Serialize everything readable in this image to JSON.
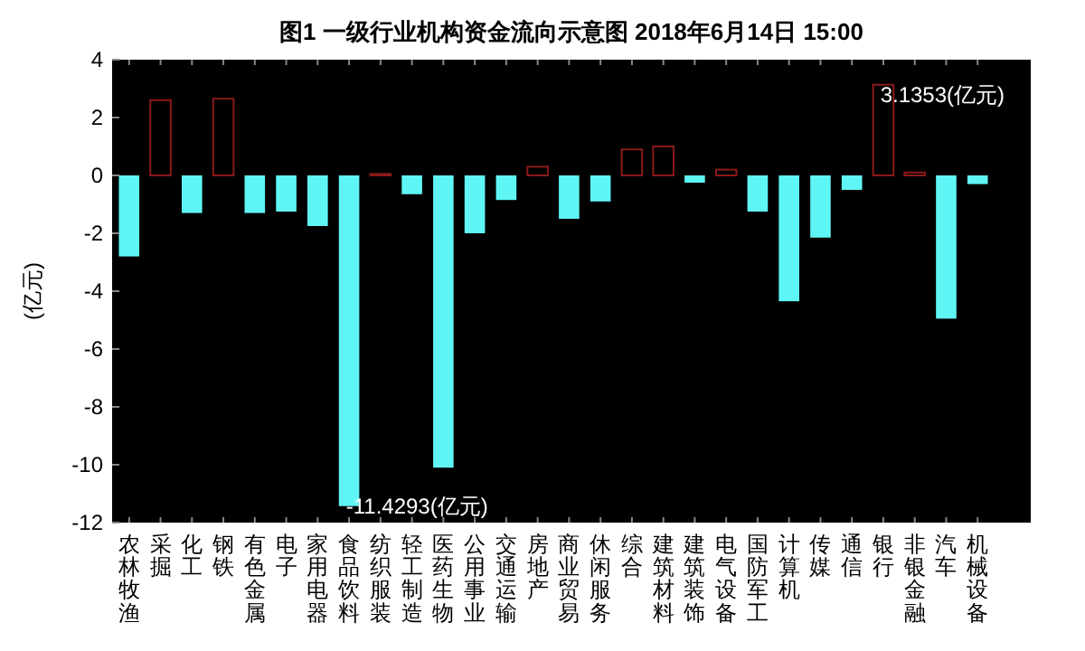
{
  "chart_data": {
    "type": "bar",
    "title": "图1 一级行业机构资金流向示意图 2018年6月14日 15:00",
    "ylabel": "(亿元)",
    "categories": [
      "农林牧渔",
      "采掘",
      "化工",
      "钢铁",
      "有色金属",
      "电子",
      "家用电器",
      "食品饮料",
      "纺织服装",
      "轻工制造",
      "医药生物",
      "公用事业",
      "交通运输",
      "房地产",
      "商业贸易",
      "休闲服务",
      "综合",
      "建筑材料",
      "建筑装饰",
      "电气设备",
      "国防军工",
      "计算机",
      "传媒",
      "通信",
      "银行",
      "非银金融",
      "汽车",
      "机械设备"
    ],
    "values": [
      -2.8,
      2.6,
      -1.3,
      2.65,
      -1.3,
      -1.25,
      -1.75,
      -11.4293,
      0.05,
      -0.65,
      -10.1,
      -2.0,
      -0.85,
      0.3,
      -1.5,
      -0.9,
      0.9,
      1.0,
      -0.25,
      0.2,
      -1.25,
      -4.35,
      -2.15,
      -0.5,
      3.1353,
      0.1,
      -4.95,
      -0.3
    ],
    "colors": [
      "#5ff5f5",
      "#8b1a1a",
      "#5ff5f5",
      "#8b1a1a",
      "#5ff5f5",
      "#5ff5f5",
      "#5ff5f5",
      "#5ff5f5",
      "#8b1a1a",
      "#5ff5f5",
      "#5ff5f5",
      "#5ff5f5",
      "#5ff5f5",
      "#8b1a1a",
      "#5ff5f5",
      "#5ff5f5",
      "#8b1a1a",
      "#8b1a1a",
      "#5ff5f5",
      "#8b1a1a",
      "#5ff5f5",
      "#5ff5f5",
      "#5ff5f5",
      "#5ff5f5",
      "#8b1a1a",
      "#8b1a1a",
      "#5ff5f5",
      "#5ff5f5"
    ],
    "ylim": [
      -12,
      4
    ],
    "yticks": [
      -12,
      -10,
      -8,
      -6,
      -4,
      -2,
      0,
      2,
      4
    ],
    "grid": false,
    "annotations": [
      {
        "text": "-11.4293(亿元)",
        "x": "食品饮料",
        "y": -11.4293
      },
      {
        "text": "3.1353(亿元)",
        "x": "银行",
        "y": 3.1353
      }
    ]
  }
}
